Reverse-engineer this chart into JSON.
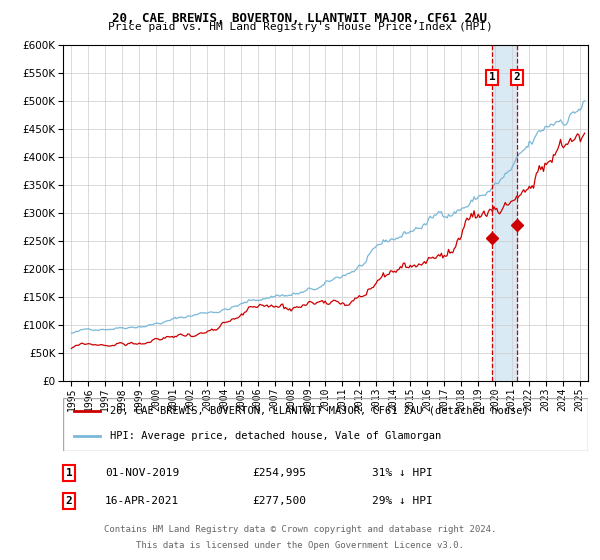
{
  "title": "20, CAE BREWIS, BOVERTON, LLANTWIT MAJOR, CF61 2AU",
  "subtitle": "Price paid vs. HM Land Registry's House Price Index (HPI)",
  "legend_line1": "20, CAE BREWIS, BOVERTON, LLANTWIT MAJOR, CF61 2AU (detached house)",
  "legend_line2": "HPI: Average price, detached house, Vale of Glamorgan",
  "marker1_date": "01-NOV-2019",
  "marker1_price": "£254,995",
  "marker1_hpi": "31% ↓ HPI",
  "marker1_year": 2019.83,
  "marker1_value": 254995,
  "marker2_date": "16-APR-2021",
  "marker2_price": "£277,500",
  "marker2_hpi": "29% ↓ HPI",
  "marker2_year": 2021.29,
  "marker2_value": 277500,
  "footer_line1": "Contains HM Land Registry data © Crown copyright and database right 2024.",
  "footer_line2": "This data is licensed under the Open Government Licence v3.0.",
  "hpi_color": "#7ab8d9",
  "price_color": "#cc0000",
  "marker_color": "#cc0000",
  "vline_color": "#cc0000",
  "shade_color": "#daeaf5",
  "background_color": "#ffffff",
  "grid_color": "#cccccc",
  "ylim": [
    0,
    600000
  ],
  "xlim_start": 1994.5,
  "xlim_end": 2025.5
}
